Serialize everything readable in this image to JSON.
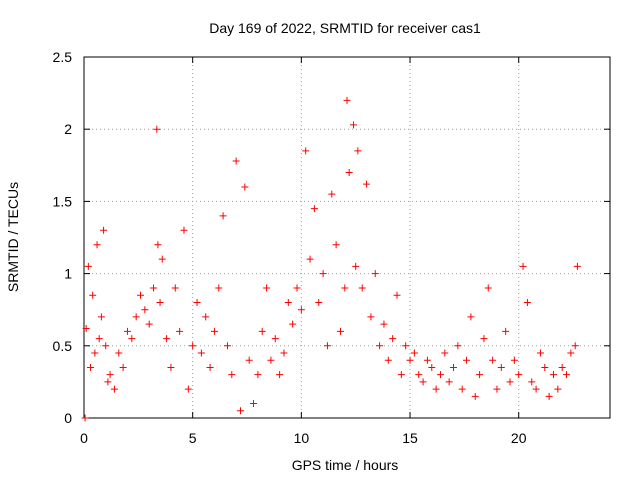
{
  "chart_data": {
    "type": "scatter",
    "title": "Day 169 of 2022, SRMTID for receiver cas1",
    "xlabel": "GPS time / hours",
    "ylabel": "SRMTID / TECUs",
    "xlim": [
      0,
      24.2
    ],
    "ylim": [
      0,
      2.5
    ],
    "xticks": [
      0,
      5,
      10,
      15,
      20
    ],
    "xtick_labels": [
      "0",
      "5",
      "10",
      "15",
      "20"
    ],
    "yticks": [
      0,
      0.5,
      1,
      1.5,
      2,
      2.5
    ],
    "ytick_labels": [
      "0",
      "0.5",
      "1",
      "1.5",
      "2",
      "2.5"
    ],
    "grid": true,
    "marker": "plus",
    "color": "#ff0000",
    "series": [
      {
        "name": "cas1",
        "x": [
          0.05,
          0.1,
          0.2,
          0.3,
          0.4,
          0.5,
          0.6,
          0.7,
          0.8,
          0.9,
          1.0,
          1.1,
          1.2,
          1.4,
          1.6,
          1.8,
          2.0,
          2.2,
          2.4,
          2.6,
          2.8,
          3.0,
          3.2,
          3.35,
          3.4,
          3.5,
          3.6,
          3.8,
          4.0,
          4.2,
          4.4,
          4.6,
          4.8,
          5.0,
          5.2,
          5.4,
          5.6,
          5.8,
          6.0,
          6.2,
          6.4,
          6.6,
          6.8,
          7.0,
          7.2,
          7.4,
          7.6,
          7.8,
          8.0,
          8.2,
          8.4,
          8.6,
          8.8,
          9.0,
          9.2,
          9.4,
          9.6,
          9.8,
          10.0,
          10.2,
          10.4,
          10.6,
          10.8,
          11.0,
          11.2,
          11.4,
          11.6,
          11.8,
          12.0,
          12.1,
          12.2,
          12.4,
          12.5,
          12.6,
          12.8,
          13.0,
          13.2,
          13.4,
          13.6,
          13.8,
          14.0,
          14.2,
          14.4,
          14.6,
          14.8,
          15.0,
          15.2,
          15.4,
          15.6,
          15.8,
          16.0,
          16.2,
          16.4,
          16.6,
          16.8,
          17.0,
          17.2,
          17.4,
          17.6,
          17.8,
          18.0,
          18.2,
          18.4,
          18.6,
          18.8,
          19.0,
          19.2,
          19.4,
          19.6,
          19.8,
          20.0,
          20.2,
          20.4,
          20.6,
          20.8,
          21.0,
          21.2,
          21.4,
          21.6,
          21.8,
          22.0,
          22.2,
          22.4,
          22.6,
          22.7
        ],
        "y": [
          0.0,
          0.62,
          1.05,
          0.35,
          0.85,
          0.45,
          1.2,
          0.55,
          0.7,
          1.3,
          0.5,
          0.25,
          0.3,
          0.2,
          0.45,
          0.35,
          0.6,
          0.55,
          0.7,
          0.85,
          0.75,
          0.65,
          0.9,
          2.0,
          1.2,
          0.8,
          1.1,
          0.55,
          0.35,
          0.9,
          0.6,
          1.3,
          0.2,
          0.5,
          0.8,
          0.45,
          0.7,
          0.35,
          0.6,
          0.9,
          1.4,
          0.5,
          0.3,
          1.78,
          0.05,
          1.6,
          0.4,
          0.1,
          0.3,
          0.6,
          0.9,
          0.4,
          0.55,
          0.3,
          0.45,
          0.8,
          0.65,
          0.9,
          0.75,
          1.85,
          1.1,
          1.45,
          0.8,
          1.0,
          0.5,
          1.55,
          1.2,
          0.6,
          0.9,
          2.2,
          1.7,
          2.03,
          1.05,
          1.85,
          0.9,
          1.62,
          0.7,
          1.0,
          0.5,
          0.65,
          0.4,
          0.55,
          0.85,
          0.3,
          0.5,
          0.4,
          0.45,
          0.3,
          0.25,
          0.4,
          0.35,
          0.2,
          0.3,
          0.45,
          0.25,
          0.35,
          0.5,
          0.2,
          0.4,
          0.7,
          0.15,
          0.3,
          0.55,
          0.9,
          0.4,
          0.2,
          0.35,
          0.6,
          0.25,
          0.4,
          0.3,
          1.05,
          0.8,
          0.25,
          0.2,
          0.45,
          0.35,
          0.15,
          0.3,
          0.2,
          0.35,
          0.3,
          0.45,
          0.5,
          1.05
        ]
      }
    ]
  }
}
